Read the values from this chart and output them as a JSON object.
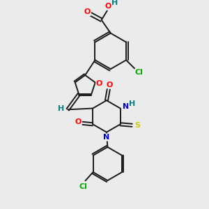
{
  "background_color": "#ebebeb",
  "bond_color": "#1a1a1a",
  "atom_colors": {
    "O": "#ff0000",
    "N": "#0000cc",
    "S": "#cccc00",
    "Cl": "#00aa00",
    "H": "#008080",
    "C": "#1a1a1a"
  }
}
